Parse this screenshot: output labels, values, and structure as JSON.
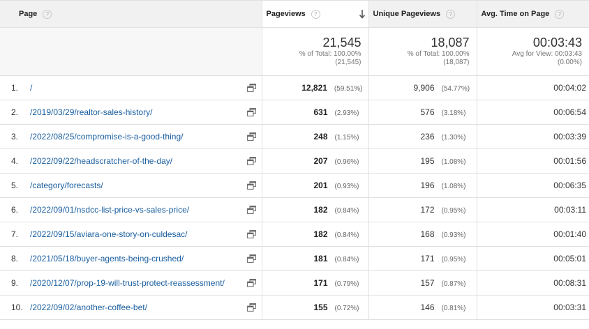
{
  "columns": {
    "page": "Page",
    "pageviews": "Pageviews",
    "unique_pageviews": "Unique Pageviews",
    "avg_time": "Avg. Time on Page"
  },
  "help_glyph": "?",
  "totals": {
    "pageviews": {
      "value": "21,545",
      "line1": "% of Total: 100.00%",
      "line2": "(21,545)"
    },
    "unique_pageviews": {
      "value": "18,087",
      "line1": "% of Total: 100.00%",
      "line2": "(18,087)"
    },
    "avg_time": {
      "value": "00:03:43",
      "line1": "Avg for View: 00:03:43",
      "line2": "(0.00%)"
    }
  },
  "rows": [
    {
      "index": "1.",
      "page": "/",
      "pageviews": "12,821",
      "pv_pct": "(59.51%)",
      "unique": "9,906",
      "upv_pct": "(54.77%)",
      "avg_time": "00:04:02"
    },
    {
      "index": "2.",
      "page": "/2019/03/29/realtor-sales-history/",
      "pageviews": "631",
      "pv_pct": "(2.93%)",
      "unique": "576",
      "upv_pct": "(3.18%)",
      "avg_time": "00:06:54"
    },
    {
      "index": "3.",
      "page": "/2022/08/25/compromise-is-a-good-thing/",
      "pageviews": "248",
      "pv_pct": "(1.15%)",
      "unique": "236",
      "upv_pct": "(1.30%)",
      "avg_time": "00:03:39"
    },
    {
      "index": "4.",
      "page": "/2022/09/22/headscratcher-of-the-day/",
      "pageviews": "207",
      "pv_pct": "(0.96%)",
      "unique": "195",
      "upv_pct": "(1.08%)",
      "avg_time": "00:01:56"
    },
    {
      "index": "5.",
      "page": "/category/forecasts/",
      "pageviews": "201",
      "pv_pct": "(0.93%)",
      "unique": "196",
      "upv_pct": "(1.08%)",
      "avg_time": "00:06:35"
    },
    {
      "index": "6.",
      "page": "/2022/09/01/nsdcc-list-price-vs-sales-price/",
      "pageviews": "182",
      "pv_pct": "(0.84%)",
      "unique": "172",
      "upv_pct": "(0.95%)",
      "avg_time": "00:03:11"
    },
    {
      "index": "7.",
      "page": "/2022/09/15/aviara-one-story-on-culdesac/",
      "pageviews": "182",
      "pv_pct": "(0.84%)",
      "unique": "168",
      "upv_pct": "(0.93%)",
      "avg_time": "00:01:40"
    },
    {
      "index": "8.",
      "page": "/2021/05/18/buyer-agents-being-crushed/",
      "pageviews": "181",
      "pv_pct": "(0.84%)",
      "unique": "171",
      "upv_pct": "(0.95%)",
      "avg_time": "00:05:01"
    },
    {
      "index": "9.",
      "page": "/2020/12/07/prop-19-will-trust-protect-reassessment/",
      "pageviews": "171",
      "pv_pct": "(0.79%)",
      "unique": "157",
      "upv_pct": "(0.87%)",
      "avg_time": "00:08:31"
    },
    {
      "index": "10.",
      "page": "/2022/09/02/another-coffee-bet/",
      "pageviews": "155",
      "pv_pct": "(0.72%)",
      "unique": "146",
      "upv_pct": "(0.81%)",
      "avg_time": "00:03:31"
    }
  ],
  "icons": {
    "help": "help-circle-icon",
    "sort": "sort-descending-arrow-icon",
    "row_link": "open-in-new-window-icon"
  },
  "colors": {
    "link": "#1a5fa0",
    "header_bg": "#f1f1f1",
    "border": "#e0e0e0"
  }
}
